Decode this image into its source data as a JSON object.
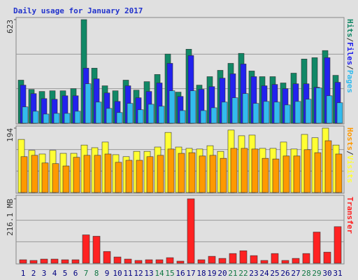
{
  "chart_data": [
    {
      "type": "bar",
      "title": "Daily usage for January 2017",
      "legend_separator": "/",
      "ylim": [
        0,
        623
      ],
      "yticks": [
        623
      ],
      "series": [
        {
          "name": "Hits",
          "color": "#118866",
          "values": [
            259,
            203,
            191,
            195,
            195,
            208,
            623,
            331,
            225,
            195,
            259,
            199,
            250,
            293,
            416,
            187,
            445,
            229,
            280,
            318,
            360,
            420,
            314,
            280,
            280,
            242,
            301,
            386,
            394,
            437,
            288
          ]
        },
        {
          "name": "Files",
          "color": "#2222ee",
          "values": [
            229,
            178,
            148,
            144,
            165,
            165,
            331,
            267,
            182,
            131,
            225,
            153,
            191,
            242,
            360,
            161,
            407,
            204,
            220,
            271,
            297,
            356,
            280,
            225,
            233,
            208,
            237,
            237,
            216,
            394,
            246
          ]
        },
        {
          "name": "Pages",
          "color": "#33bbee",
          "values": [
            98,
            72,
            55,
            59,
            59,
            72,
            237,
            127,
            89,
            64,
            119,
            81,
            114,
            102,
            195,
            76,
            195,
            76,
            93,
            127,
            153,
            178,
            119,
            131,
            127,
            110,
            131,
            144,
            212,
            165,
            123
          ]
        }
      ]
    },
    {
      "type": "bar",
      "legend_separator": "/",
      "ylim": [
        0,
        194
      ],
      "yticks": [
        194
      ],
      "series": [
        {
          "name": "Hosts",
          "color": "#ff9900",
          "values": [
            108,
            112,
            89,
            87,
            80,
            106,
            112,
            112,
            116,
            91,
            97,
            97,
            108,
            112,
            131,
            118,
            120,
            110,
            112,
            103,
            133,
            133,
            131,
            103,
            101,
            110,
            110,
            129,
            120,
            156,
            116
          ]
        },
        {
          "name": "Visits",
          "color": "#ffff33",
          "values": [
            160,
            127,
            116,
            127,
            118,
            118,
            143,
            135,
            152,
            114,
            108,
            124,
            124,
            137,
            181,
            137,
            133,
            131,
            141,
            124,
            188,
            171,
            173,
            133,
            133,
            152,
            131,
            175,
            165,
            194,
            143
          ]
        }
      ]
    },
    {
      "type": "bar",
      "ylim": [
        0,
        216.1
      ],
      "yticks": [
        {
          "value": 216.1,
          "label": "216.1 MB"
        }
      ],
      "series": [
        {
          "name": "Transfer",
          "color": "#ff2222",
          "values": [
            11.6,
            9.3,
            13.9,
            13.9,
            11.6,
            11.6,
            95.1,
            90.5,
            39.4,
            20.9,
            13.9,
            9.3,
            11.6,
            11.6,
            18.6,
            7.0,
            216.1,
            11.6,
            23.2,
            16.2,
            32.5,
            41.8,
            25.5,
            9.3,
            32.5,
            9.3,
            16.2,
            32.5,
            104.5,
            37.2,
            122.6
          ]
        }
      ],
      "categories": [
        "1",
        "2",
        "3",
        "4",
        "5",
        "6",
        "7",
        "8",
        "9",
        "10",
        "11",
        "12",
        "13",
        "14",
        "15",
        "16",
        "17",
        "18",
        "19",
        "20",
        "21",
        "22",
        "23",
        "24",
        "25",
        "26",
        "27",
        "28",
        "29",
        "30",
        "31"
      ],
      "category_color": "#000080",
      "weekend_color": "#117744",
      "weekend": [
        6,
        7,
        13,
        14,
        20,
        21,
        27,
        28
      ]
    }
  ]
}
